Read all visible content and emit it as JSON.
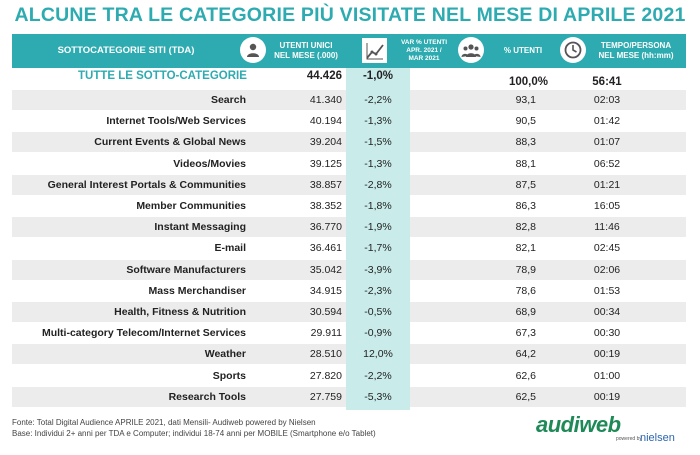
{
  "title": "ALCUNE TRA LE CATEGORIE PIÙ VISITATE NEL MESE DI APRILE 2021",
  "header": {
    "name": "SOTTOCATEGORIE SITI  (TDA)",
    "users_line1": "UTENTI UNICI",
    "users_line2": "NEL MESE (.000)",
    "var_line1": "VAR % UTENTI",
    "var_line2": "APR. 2021 /",
    "var_line3": "MAR 2021",
    "pct": "% UTENTI",
    "time_line1": "TEMPO/PERSONA",
    "time_line2": "NEL MESE  (hh:mm)"
  },
  "total": {
    "name": "TUTTE LE SOTTO-CATEGORIE",
    "users": "44.426",
    "var": "-1,0%",
    "pct": "100,0%",
    "time": "56:41"
  },
  "rows": [
    {
      "name": "Search",
      "users": "41.340",
      "var": "-2,2%",
      "pct": "93,1",
      "time": "02:03"
    },
    {
      "name": "Internet Tools/Web Services",
      "users": "40.194",
      "var": "-1,3%",
      "pct": "90,5",
      "time": "01:42"
    },
    {
      "name": "Current Events & Global News",
      "users": "39.204",
      "var": "-1,5%",
      "pct": "88,3",
      "time": "01:07"
    },
    {
      "name": "Videos/Movies",
      "users": "39.125",
      "var": "-1,3%",
      "pct": "88,1",
      "time": "06:52"
    },
    {
      "name": "General Interest Portals & Communities",
      "users": "38.857",
      "var": "-2,8%",
      "pct": "87,5",
      "time": "01:21"
    },
    {
      "name": "Member Communities",
      "users": "38.352",
      "var": "-1,8%",
      "pct": "86,3",
      "time": "16:05"
    },
    {
      "name": "Instant Messaging",
      "users": "36.770",
      "var": "-1,9%",
      "pct": "82,8",
      "time": "11:46"
    },
    {
      "name": "E-mail",
      "users": "36.461",
      "var": "-1,7%",
      "pct": "82,1",
      "time": "02:45"
    },
    {
      "name": "Software Manufacturers",
      "users": "35.042",
      "var": "-3,9%",
      "pct": "78,9",
      "time": "02:06"
    },
    {
      "name": "Mass Merchandiser",
      "users": "34.915",
      "var": "-2,3%",
      "pct": "78,6",
      "time": "01:53"
    },
    {
      "name": "Health, Fitness & Nutrition",
      "users": "30.594",
      "var": "-0,5%",
      "pct": "68,9",
      "time": "00:34"
    },
    {
      "name": "Multi-category Telecom/Internet Services",
      "users": "29.911",
      "var": "-0,9%",
      "pct": "67,3",
      "time": "00:30"
    },
    {
      "name": "Weather",
      "users": "28.510",
      "var": "12,0%",
      "pct": "64,2",
      "time": "00:19"
    },
    {
      "name": "Sports",
      "users": "27.820",
      "var": "-2,2%",
      "pct": "62,6",
      "time": "01:00"
    },
    {
      "name": "Research Tools",
      "users": "27.759",
      "var": "-5,3%",
      "pct": "62,5",
      "time": "00:19"
    }
  ],
  "footer": {
    "source": "Fonte: Total Digital Audience APRILE 2021, dati Mensili- Audiweb powered by Nielsen",
    "base": "Base:  Individui 2+ anni per TDA e Computer; individui 18-74 anni per MOBILE (Smartphone e/o Tablet)"
  },
  "logo": {
    "audiweb": "audiweb",
    "powered": "powered by",
    "nielsen": "nielsen"
  },
  "colors": {
    "accent": "#2dabb0",
    "var_column": "#c9ecea",
    "row_alt": "#ececec",
    "logo_green": "#1f8a57",
    "nielsen_blue": "#2a66b0"
  },
  "icons": {
    "users": "user-icon",
    "var": "trend-chart-icon",
    "pct": "group-icon",
    "time": "clock-icon"
  }
}
